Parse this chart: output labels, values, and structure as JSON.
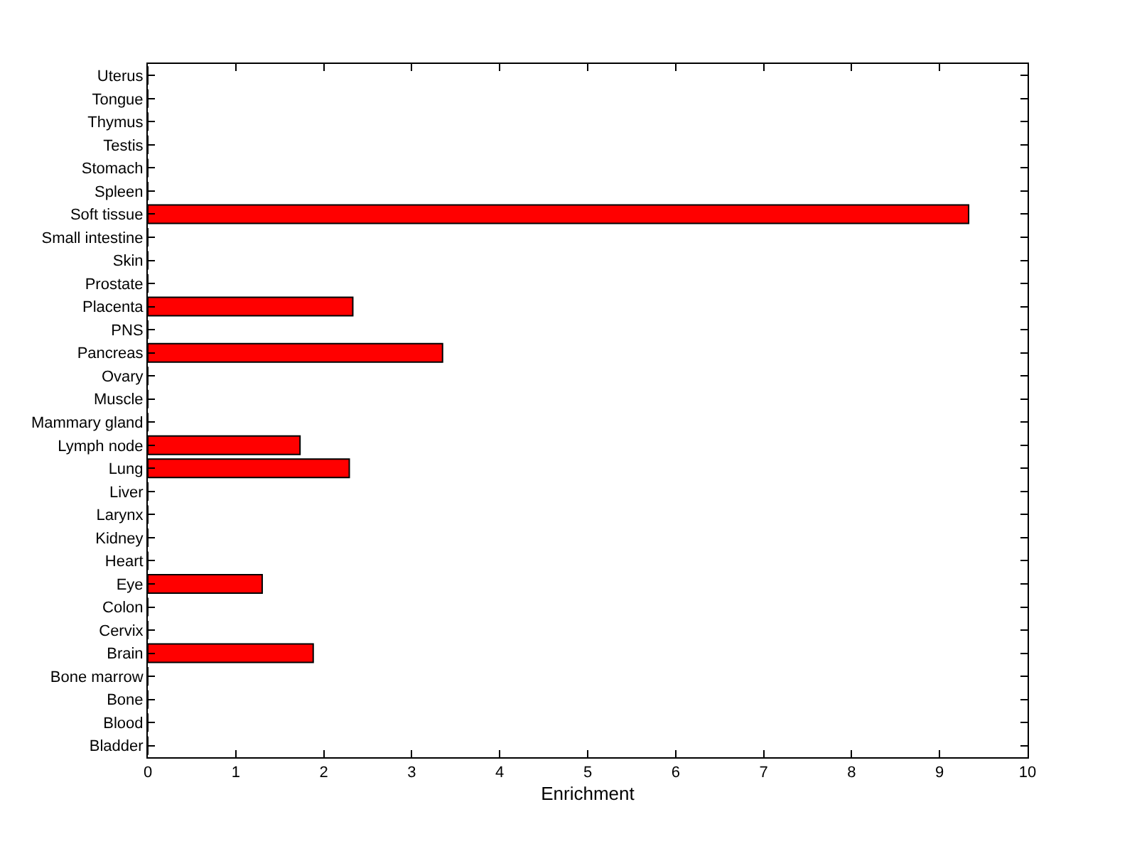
{
  "chart_data": {
    "type": "bar",
    "orientation": "horizontal",
    "xlabel": "Enrichment",
    "categories": [
      "Uterus",
      "Tongue",
      "Thymus",
      "Testis",
      "Stomach",
      "Spleen",
      "Soft tissue",
      "Small intestine",
      "Skin",
      "Prostate",
      "Placenta",
      "PNS",
      "Pancreas",
      "Ovary",
      "Muscle",
      "Mammary gland",
      "Lymph node",
      "Lung",
      "Liver",
      "Larynx",
      "Kidney",
      "Heart",
      "Eye",
      "Colon",
      "Cervix",
      "Brain",
      "Bone marrow",
      "Bone",
      "Blood",
      "Bladder"
    ],
    "values": [
      0,
      0,
      0,
      0,
      0,
      0,
      9.33,
      0,
      0,
      0,
      2.33,
      0,
      3.35,
      0,
      0,
      0,
      1.73,
      2.29,
      0,
      0,
      0,
      0,
      1.3,
      0,
      0,
      1.88,
      0,
      0,
      0,
      0
    ],
    "color": "#ff0000",
    "xlim": [
      0,
      10
    ],
    "xticks": [
      0,
      1,
      2,
      3,
      4,
      5,
      6,
      7,
      8,
      9,
      10
    ]
  }
}
